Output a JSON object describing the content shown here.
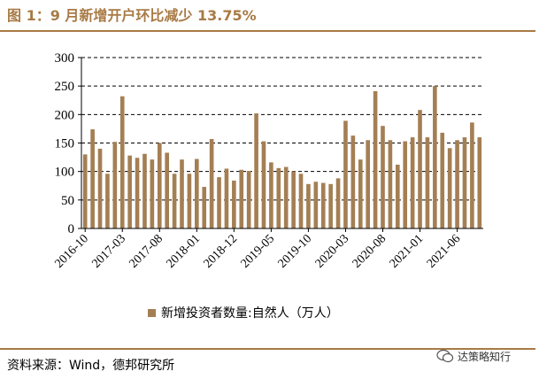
{
  "header": {
    "title": "图 1：9 月新增开户环比减少 13.75%"
  },
  "footer": {
    "source": "资料来源：Wind，德邦研究所",
    "watermark": "达策略知行"
  },
  "colors": {
    "bar": "#a47f54",
    "accent": "#a87a45",
    "grid": "#000000"
  },
  "chart_data": {
    "type": "bar",
    "title": "",
    "xlabel": "",
    "ylabel": "",
    "ylim": [
      0,
      300
    ],
    "yticks": [
      0,
      50,
      100,
      150,
      200,
      250,
      300
    ],
    "grid": true,
    "legend_position": "bottom",
    "x_tick_labels": [
      "2016-10",
      "2017-03",
      "2017-08",
      "2018-01",
      "2018-12",
      "2019-05",
      "2019-10",
      "2020-03",
      "2020-08",
      "2021-01",
      "2021-06"
    ],
    "series": [
      {
        "name": "新增投资者数量:自然人（万人）",
        "values": [
          130,
          174,
          140,
          96,
          152,
          232,
          128,
          124,
          131,
          121,
          150,
          133,
          96,
          121,
          96,
          122,
          73,
          157,
          90,
          105,
          84,
          103,
          101,
          202,
          153,
          116,
          106,
          108,
          100,
          96,
          78,
          82,
          80,
          78,
          88,
          189,
          163,
          121,
          155,
          241,
          180,
          155,
          112,
          153,
          160,
          208,
          160,
          250,
          168,
          141,
          155,
          160,
          186,
          160
        ]
      }
    ]
  }
}
